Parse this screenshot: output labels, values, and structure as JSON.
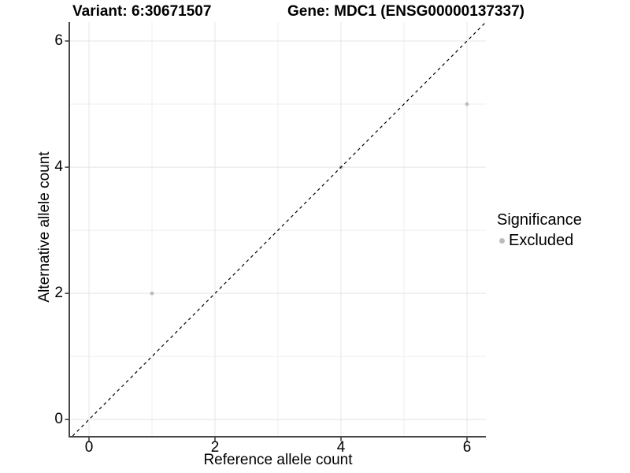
{
  "titles": {
    "variant": "Variant: 6:30671507",
    "gene": "Gene: MDC1 (ENSG00000137337)"
  },
  "axes": {
    "x": {
      "label": "Reference allele count",
      "tick_labels": [
        "0",
        "2",
        "4",
        "6"
      ]
    },
    "y": {
      "label": "Alternative allele count",
      "tick_labels": [
        "0",
        "2",
        "4",
        "6"
      ]
    }
  },
  "legend": {
    "title": "Significance",
    "entries": [
      {
        "label": "Excluded",
        "color": "#bcbcbc"
      }
    ]
  },
  "colors": {
    "background": "#ffffff",
    "axis_line": "#464646",
    "tick_mark": "#333333",
    "grid_major": "#e4e4e4",
    "grid_minor": "#efefef",
    "point": "#bcbcbc",
    "reference_line": "#000000"
  },
  "chart_data": {
    "type": "scatter",
    "title": "Variant: 6:30671507 | Gene: MDC1 (ENSG00000137337)",
    "xlabel": "Reference allele count",
    "ylabel": "Alternative allele count",
    "xlim": [
      -0.3,
      6.3
    ],
    "ylim": [
      -0.26,
      6.3
    ],
    "x_ticks": [
      0,
      2,
      4,
      6
    ],
    "y_ticks": [
      0,
      2,
      4,
      6
    ],
    "grid_major_x": [
      0,
      2,
      4,
      6
    ],
    "grid_minor_x": [
      1,
      3,
      5
    ],
    "grid_major_y": [
      0,
      2,
      4,
      6
    ],
    "grid_minor_y": [
      1,
      3,
      5
    ],
    "grid": true,
    "legend_position": "right",
    "series": [
      {
        "name": "Excluded",
        "color": "#bcbcbc",
        "point_radius": 2.4,
        "points": [
          {
            "x": 1,
            "y": 2
          },
          {
            "x": 4,
            "y": 4
          },
          {
            "x": 6,
            "y": 5
          }
        ]
      }
    ],
    "reference_line": {
      "type": "identity y=x",
      "style": "dashed",
      "color": "#000000"
    }
  }
}
